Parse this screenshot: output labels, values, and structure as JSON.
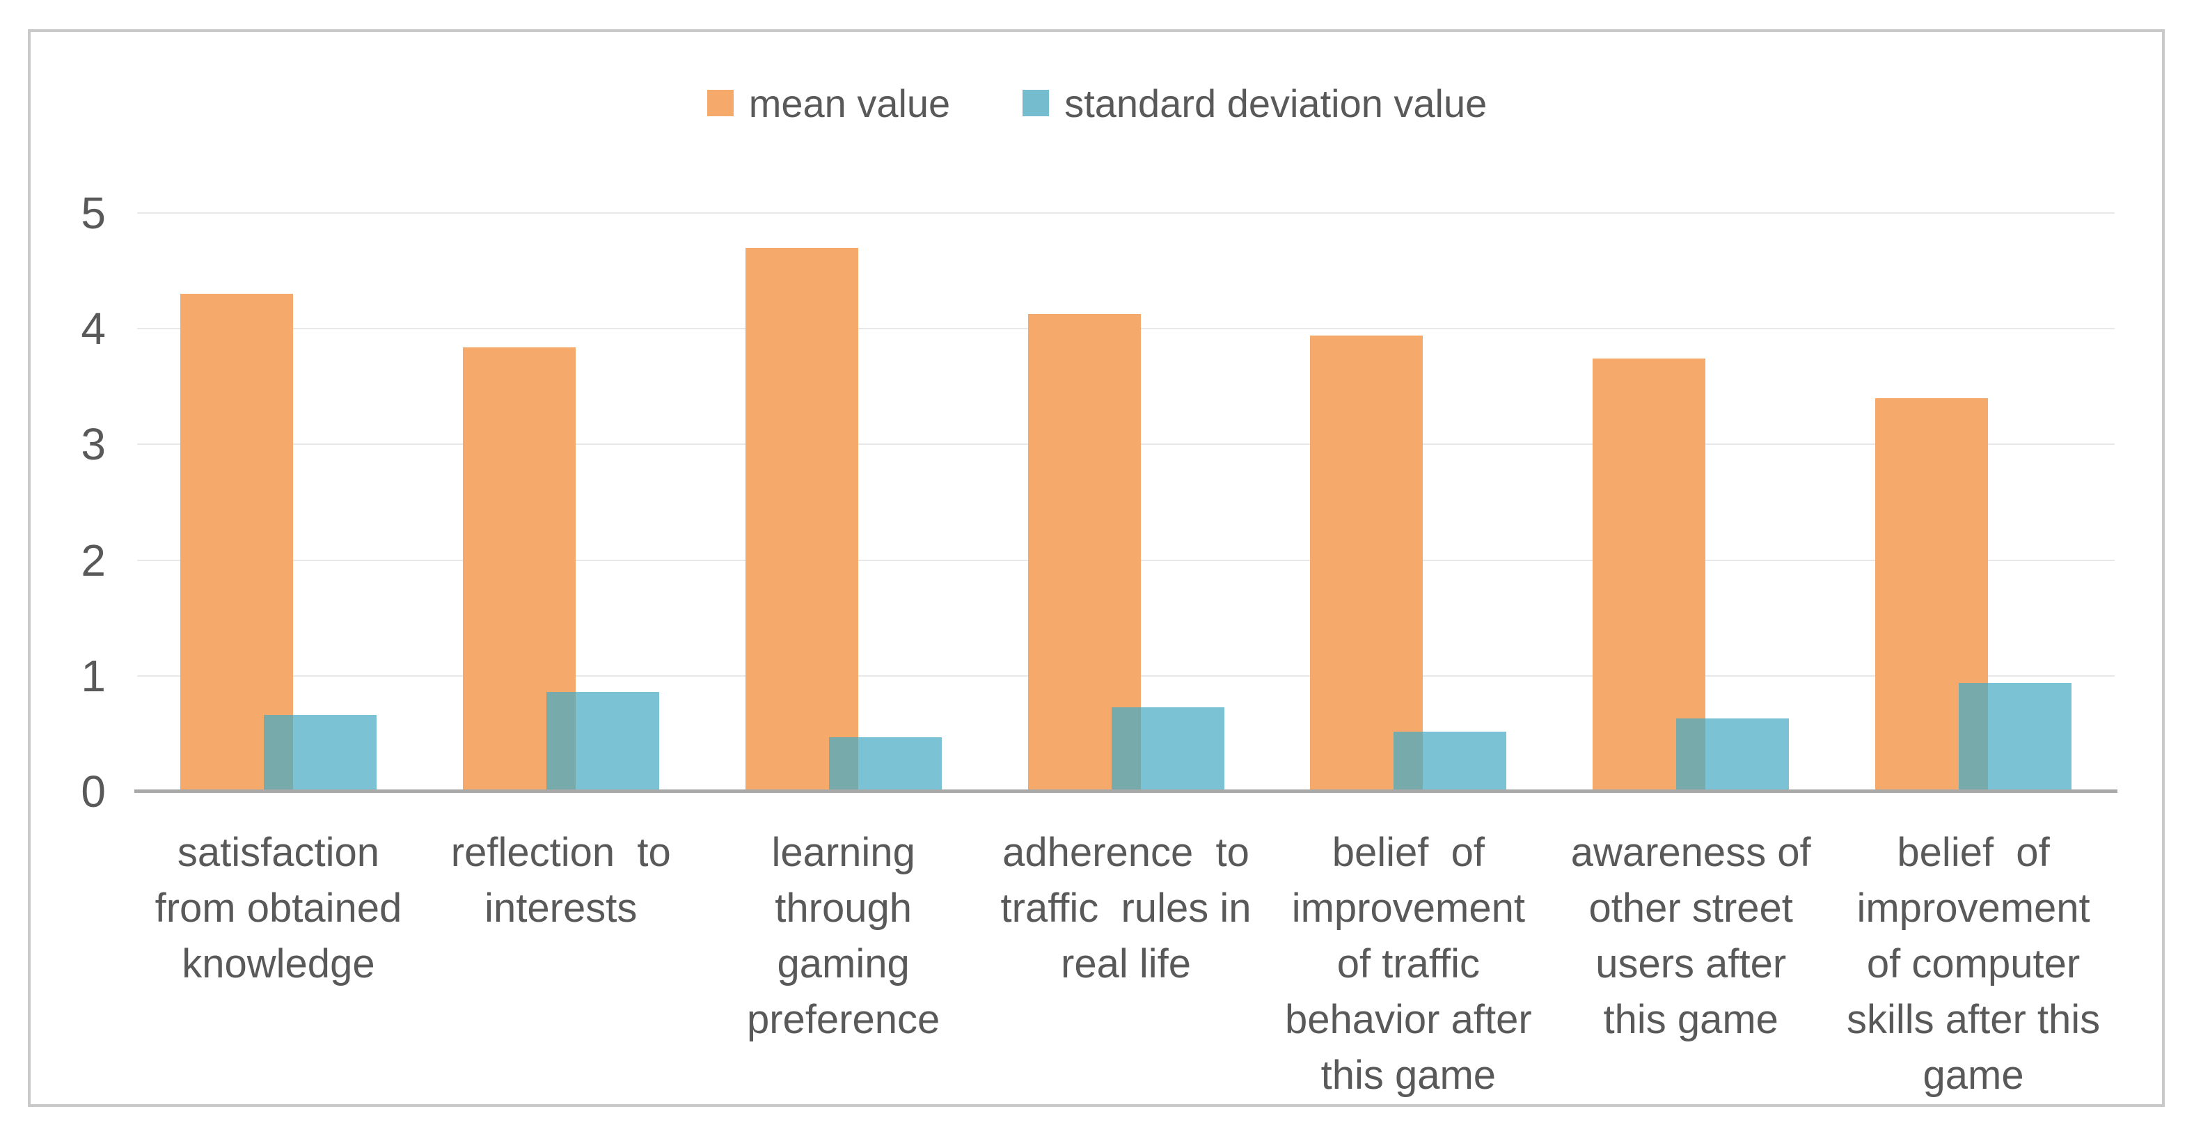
{
  "colors": {
    "background": "#FFFFFF",
    "frame_border": "#C9C9C9",
    "gridline": "#E8E8E8",
    "axis_line": "#A9A9A9",
    "text": "#595959",
    "mean_bar": "#F5A96A",
    "sd_swatch": "#74BCCE",
    "sd_bar_overlay": "rgba(70,170,195,0.72)"
  },
  "chart_data": {
    "type": "bar",
    "title": "",
    "xlabel": "",
    "ylabel": "",
    "ylim": [
      0,
      5
    ],
    "yticks": [
      "0",
      "1",
      "2",
      "3",
      "4",
      "5"
    ],
    "grid": true,
    "legend_position": "top-center",
    "bar_style": "overlapping pair per category, sd bar semi-transparent over mean bar",
    "categories": [
      "satisfaction\nfrom obtained\nknowledge",
      "reflection  to\ninterests",
      "learning\nthrough\ngaming\npreference",
      "adherence  to\ntraffic  rules in\nreal life",
      "belief  of\nimprovement\nof traffic\nbehavior after\nthis game",
      "awareness of\nother street\nusers after\nthis game",
      "belief  of\nimprovement\nof computer\nskills after this\ngame"
    ],
    "series": [
      {
        "name": "mean value",
        "values": [
          4.3,
          3.84,
          4.7,
          4.13,
          3.94,
          3.74,
          3.4
        ]
      },
      {
        "name": "standard deviation value",
        "values": [
          0.66,
          0.86,
          0.47,
          0.73,
          0.52,
          0.63,
          0.94
        ]
      }
    ]
  }
}
